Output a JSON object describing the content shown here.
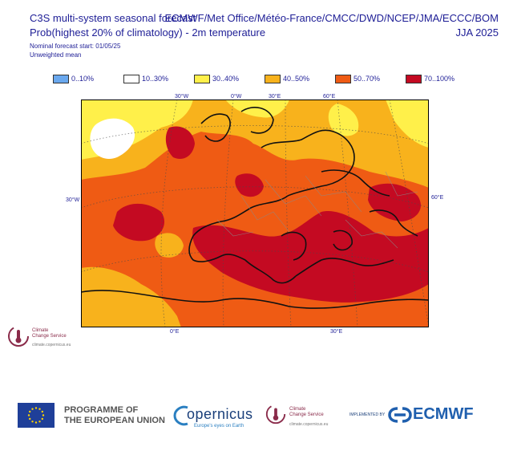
{
  "header": {
    "title_left": "C3S multi-system seasonal forecast",
    "subtitle_left": "Prob(highest 20% of climatology) - 2m temperature",
    "forecast_start": "Nominal forecast start: 01/05/25",
    "weighting": "Unweighted mean",
    "title_right": "ECMWF/Met Office/Météo-France/CMCC/DWD/NCEP/JMA/ECCC/BOM",
    "season": "JJA 2025"
  },
  "legend": [
    {
      "label": "0..10%",
      "color": "#6aa8ee"
    },
    {
      "label": "10..30%",
      "color": "#ffffff"
    },
    {
      "label": "30..40%",
      "color": "#fff04a"
    },
    {
      "label": "40..50%",
      "color": "#f8b21c"
    },
    {
      "label": "50..70%",
      "color": "#ef5b14"
    },
    {
      "label": "70..100%",
      "color": "#c40a22"
    }
  ],
  "map": {
    "ticks_top": [
      "30°W",
      "0°W",
      "30°E",
      "60°E"
    ],
    "ticks_left": [
      "30°W"
    ],
    "ticks_right": [
      "60°E"
    ],
    "ticks_bottom": [
      "0°E",
      "30°E"
    ]
  },
  "logo_small": {
    "line1": "Climate",
    "line2": "Change Service",
    "url": "climate.copernicus.eu"
  },
  "footer": {
    "programme_line1": "PROGRAMME OF",
    "programme_line2": "THE EUROPEAN UNION",
    "copernicus": "opernicus",
    "copernicus_tagline": "Europe's eyes on Earth",
    "ccs_line1": "Climate",
    "ccs_line2": "Change Service",
    "ccs_url": "climate.copernicus.eu",
    "implemented_by": "IMPLEMENTED BY",
    "ecmwf": "ECMWF"
  }
}
